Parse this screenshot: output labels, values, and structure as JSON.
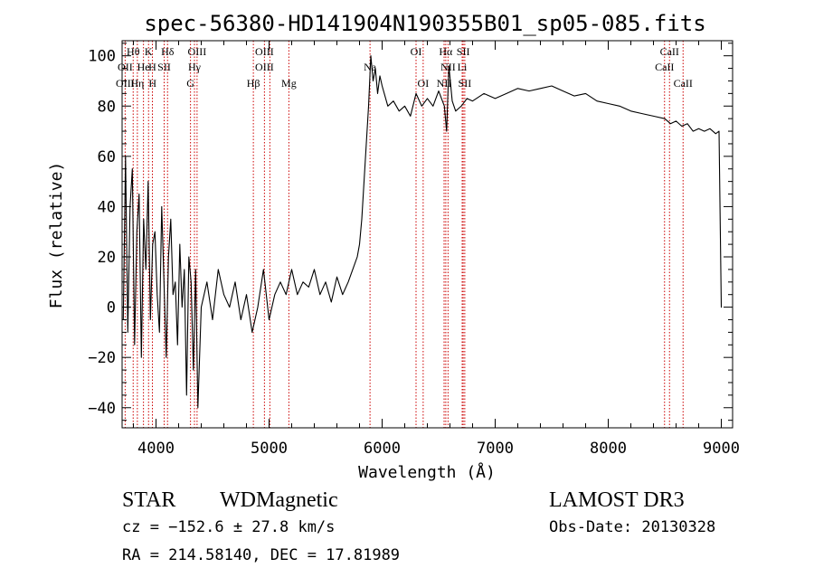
{
  "chart_data": {
    "type": "line",
    "title": "spec-56380-HD141904N190355B01_sp05-085.fits",
    "xlabel": "Wavelength (Å)",
    "ylabel": "Flux (relative)",
    "xlim": [
      3700,
      9100
    ],
    "ylim": [
      -48,
      106
    ],
    "xticks": [
      4000,
      5000,
      6000,
      7000,
      8000,
      9000
    ],
    "yticks": [
      -40,
      -20,
      0,
      20,
      40,
      60,
      80,
      100
    ],
    "ytick_labels": [
      "−40",
      "−20",
      "0",
      "20",
      "40",
      "60",
      "80",
      "100"
    ],
    "series": [
      {
        "name": "flux",
        "x": [
          3710,
          3730,
          3750,
          3770,
          3790,
          3810,
          3830,
          3850,
          3870,
          3890,
          3910,
          3930,
          3950,
          3970,
          3990,
          4010,
          4030,
          4050,
          4070,
          4090,
          4110,
          4130,
          4150,
          4170,
          4190,
          4210,
          4230,
          4250,
          4270,
          4290,
          4310,
          4330,
          4350,
          4370,
          4400,
          4450,
          4500,
          4550,
          4600,
          4650,
          4700,
          4750,
          4800,
          4850,
          4900,
          4950,
          5000,
          5050,
          5100,
          5150,
          5200,
          5250,
          5300,
          5350,
          5400,
          5450,
          5500,
          5550,
          5600,
          5650,
          5700,
          5740,
          5780,
          5800,
          5820,
          5840,
          5860,
          5880,
          5900,
          5920,
          5940,
          5960,
          5980,
          6000,
          6050,
          6100,
          6150,
          6200,
          6250,
          6300,
          6350,
          6400,
          6450,
          6500,
          6550,
          6570,
          6590,
          6620,
          6650,
          6700,
          6750,
          6800,
          6900,
          7000,
          7100,
          7200,
          7300,
          7400,
          7500,
          7600,
          7700,
          7800,
          7900,
          8000,
          8100,
          8200,
          8300,
          8400,
          8500,
          8550,
          8600,
          8650,
          8700,
          8750,
          8800,
          8850,
          8900,
          8950,
          8980,
          9000,
          9005
        ],
        "y": [
          -5,
          60,
          -10,
          40,
          55,
          -15,
          30,
          45,
          -20,
          35,
          15,
          50,
          -5,
          25,
          30,
          5,
          -10,
          40,
          10,
          -20,
          20,
          35,
          5,
          10,
          -15,
          25,
          0,
          15,
          -35,
          20,
          10,
          -25,
          15,
          -40,
          0,
          10,
          -5,
          15,
          5,
          0,
          10,
          -5,
          5,
          -10,
          0,
          15,
          -5,
          5,
          10,
          5,
          15,
          5,
          10,
          8,
          15,
          5,
          10,
          2,
          12,
          5,
          10,
          15,
          20,
          25,
          35,
          50,
          65,
          80,
          100,
          90,
          95,
          85,
          92,
          88,
          80,
          82,
          78,
          80,
          76,
          85,
          80,
          83,
          80,
          86,
          80,
          70,
          96,
          82,
          78,
          80,
          83,
          82,
          85,
          83,
          85,
          87,
          86,
          87,
          88,
          86,
          84,
          85,
          82,
          81,
          80,
          78,
          77,
          76,
          75,
          73,
          74,
          72,
          73,
          70,
          71,
          70,
          71,
          69,
          70,
          0,
          0
        ]
      }
    ],
    "line_markers": [
      {
        "label": "Hθ",
        "wavelength": 3798,
        "row": 0
      },
      {
        "label": "K",
        "wavelength": 3934,
        "row": 0
      },
      {
        "label": "Hδ",
        "wavelength": 4102,
        "row": 0
      },
      {
        "label": "OIII",
        "wavelength": 4363,
        "row": 0
      },
      {
        "label": "OIII",
        "wavelength": 4959,
        "row": 0
      },
      {
        "label": "OI",
        "wavelength": 6300,
        "row": 0
      },
      {
        "label": "Hα",
        "wavelength": 6563,
        "row": 0
      },
      {
        "label": "SII",
        "wavelength": 6717,
        "row": 0
      },
      {
        "label": "CaII",
        "wavelength": 8542,
        "row": 0
      },
      {
        "label": "OII",
        "wavelength": 3727,
        "row": 1
      },
      {
        "label": "He",
        "wavelength": 3889,
        "row": 1
      },
      {
        "label": "H",
        "wavelength": 3968,
        "row": 1
      },
      {
        "label": "SII",
        "wavelength": 4072,
        "row": 1
      },
      {
        "label": "Hγ",
        "wavelength": 4340,
        "row": 1
      },
      {
        "label": "OIII",
        "wavelength": 4959,
        "row": 1
      },
      {
        "label": "Na",
        "wavelength": 5893,
        "row": 1
      },
      {
        "label": "NII",
        "wavelength": 6583,
        "row": 1
      },
      {
        "label": "Li",
        "wavelength": 6708,
        "row": 1
      },
      {
        "label": "CaII",
        "wavelength": 8498,
        "row": 1
      },
      {
        "label": "OIII",
        "wavelength": 3727,
        "row": 2
      },
      {
        "label": "Hη",
        "wavelength": 3835,
        "row": 2
      },
      {
        "label": "H",
        "wavelength": 3970,
        "row": 2
      },
      {
        "label": "G",
        "wavelength": 4305,
        "row": 2
      },
      {
        "label": "Hβ",
        "wavelength": 4861,
        "row": 2
      },
      {
        "label": "Mg",
        "wavelength": 5175,
        "row": 2
      },
      {
        "label": "OI",
        "wavelength": 6363,
        "row": 2
      },
      {
        "label": "NII",
        "wavelength": 6548,
        "row": 2
      },
      {
        "label": "SII",
        "wavelength": 6731,
        "row": 2
      },
      {
        "label": "CaII",
        "wavelength": 8662,
        "row": 2
      }
    ],
    "marker_lines": [
      3727,
      3798,
      3835,
      3889,
      3934,
      3968,
      4072,
      4102,
      4305,
      4340,
      4363,
      4861,
      4959,
      5007,
      5175,
      5893,
      6300,
      6363,
      6548,
      6563,
      6583,
      6708,
      6717,
      6731,
      8498,
      8542,
      8662
    ],
    "marker_color": "#cc0000",
    "line_color": "#000000"
  },
  "info": {
    "class_label": "STAR",
    "subclass": "WDMagnetic",
    "survey": "LAMOST DR3",
    "cz": "cz = −152.6 ± 27.8 km/s",
    "obs_date": "Obs-Date: 20130328",
    "coords": "RA = 214.58140, DEC =  17.81989"
  }
}
